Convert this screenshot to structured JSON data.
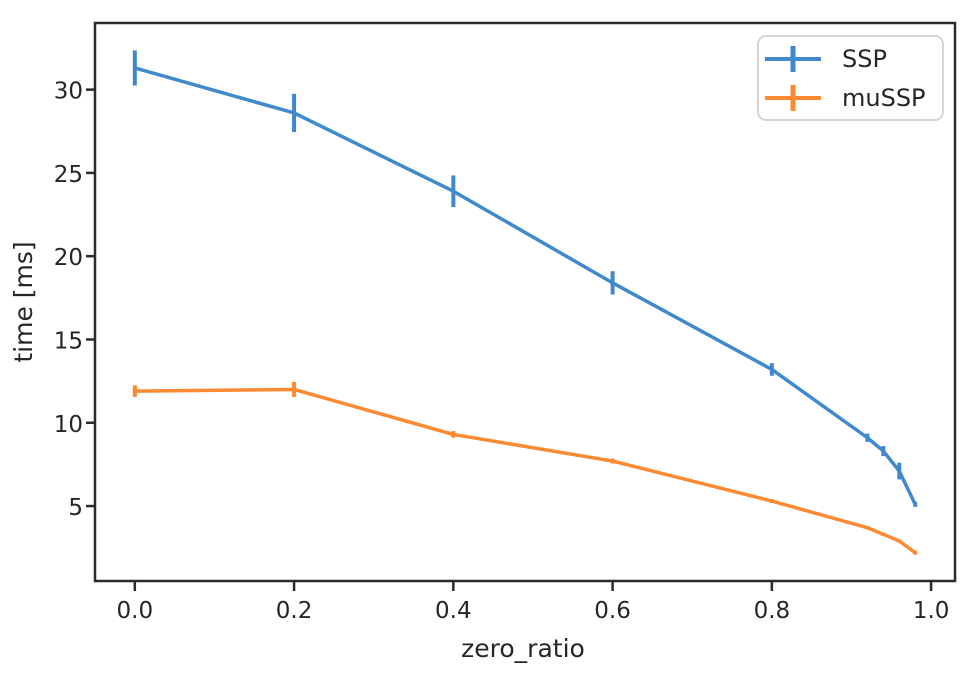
{
  "figure": {
    "background": "#ffffff"
  },
  "style": {
    "spine_color": "#2b2b2b",
    "text_color": "#262626",
    "legend_border": "#d5d5d5",
    "legend_background": "#ffffff"
  },
  "chart_data": {
    "type": "line",
    "title": "",
    "xlabel": "zero_ratio",
    "ylabel": "time [ms]",
    "x": [
      0.0,
      0.2,
      0.4,
      0.6,
      0.8,
      0.92,
      0.94,
      0.96,
      0.98
    ],
    "series": [
      {
        "name": "SSP",
        "color": "#4089cd",
        "values": [
          31.3,
          28.6,
          23.9,
          18.4,
          13.2,
          9.1,
          8.3,
          7.1,
          5.1
        ],
        "yerr": [
          1.05,
          1.15,
          0.95,
          0.7,
          0.38,
          0.25,
          0.3,
          0.5,
          0.15
        ]
      },
      {
        "name": "muSSP",
        "color": "#fc8a33",
        "values": [
          11.9,
          12.0,
          9.3,
          7.7,
          5.3,
          3.7,
          3.3,
          2.9,
          2.2
        ],
        "yerr": [
          0.35,
          0.45,
          0.2,
          0.15,
          0.12,
          0.1,
          0.1,
          0.1,
          0.12
        ]
      }
    ],
    "axes": {
      "xticks": [
        0.0,
        0.2,
        0.4,
        0.6,
        0.8,
        1.0
      ],
      "xtick_labels": [
        "0.0",
        "0.2",
        "0.4",
        "0.6",
        "0.8",
        "1.0"
      ],
      "yticks": [
        5,
        10,
        15,
        20,
        25,
        30
      ],
      "ytick_labels": [
        "5",
        "10",
        "15",
        "20",
        "25",
        "30"
      ],
      "xlim": [
        -0.05,
        1.03
      ],
      "ylim": [
        0.5,
        34.0
      ],
      "grid": false
    },
    "legend": {
      "position": "upper right",
      "entries": [
        "SSP",
        "muSSP"
      ]
    }
  }
}
